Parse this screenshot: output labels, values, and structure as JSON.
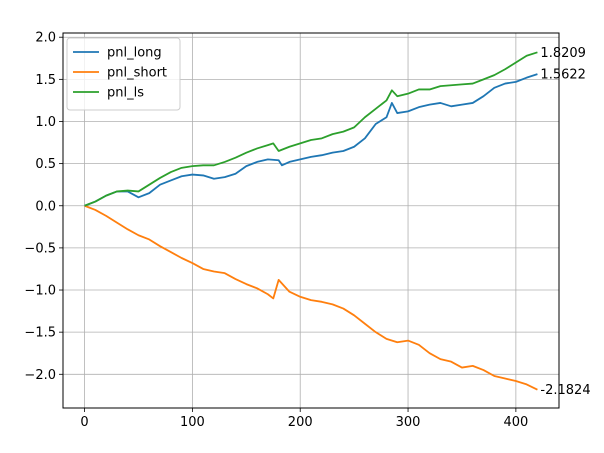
{
  "chart_data": {
    "type": "line",
    "title": "",
    "xlabel": "",
    "ylabel": "",
    "xlim": [
      -20,
      440
    ],
    "ylim": [
      -2.4,
      2.05
    ],
    "x_ticks": [
      0,
      100,
      200,
      300,
      400
    ],
    "y_ticks": [
      -2.0,
      -1.5,
      -1.0,
      -0.5,
      0.0,
      0.5,
      1.0,
      1.5,
      2.0
    ],
    "x_tick_labels": [
      "0",
      "100",
      "200",
      "300",
      "400"
    ],
    "y_tick_labels": [
      "−2.0",
      "−1.5",
      "−1.0",
      "−0.5",
      "0.0",
      "0.5",
      "1.0",
      "1.5",
      "2.0"
    ],
    "grid": true,
    "legend_position": "top-left",
    "series": [
      {
        "name": "pnl_long",
        "color": "#1f77b4",
        "end_label": "1.5622",
        "points": [
          [
            0,
            0.0
          ],
          [
            10,
            0.05
          ],
          [
            20,
            0.12
          ],
          [
            30,
            0.17
          ],
          [
            40,
            0.17
          ],
          [
            50,
            0.1
          ],
          [
            60,
            0.15
          ],
          [
            70,
            0.25
          ],
          [
            80,
            0.3
          ],
          [
            90,
            0.35
          ],
          [
            100,
            0.37
          ],
          [
            110,
            0.36
          ],
          [
            120,
            0.32
          ],
          [
            130,
            0.34
          ],
          [
            140,
            0.38
          ],
          [
            150,
            0.47
          ],
          [
            160,
            0.52
          ],
          [
            170,
            0.55
          ],
          [
            180,
            0.54
          ],
          [
            183,
            0.48
          ],
          [
            190,
            0.52
          ],
          [
            200,
            0.55
          ],
          [
            210,
            0.58
          ],
          [
            220,
            0.6
          ],
          [
            230,
            0.63
          ],
          [
            240,
            0.65
          ],
          [
            250,
            0.7
          ],
          [
            260,
            0.8
          ],
          [
            270,
            0.97
          ],
          [
            280,
            1.05
          ],
          [
            285,
            1.22
          ],
          [
            290,
            1.1
          ],
          [
            300,
            1.12
          ],
          [
            310,
            1.17
          ],
          [
            320,
            1.2
          ],
          [
            330,
            1.22
          ],
          [
            340,
            1.18
          ],
          [
            350,
            1.2
          ],
          [
            360,
            1.22
          ],
          [
            370,
            1.3
          ],
          [
            380,
            1.4
          ],
          [
            390,
            1.45
          ],
          [
            400,
            1.47
          ],
          [
            410,
            1.52
          ],
          [
            420,
            1.5622
          ]
        ]
      },
      {
        "name": "pnl_short",
        "color": "#ff7f0e",
        "end_label": "-2.1824",
        "points": [
          [
            0,
            0.0
          ],
          [
            10,
            -0.05
          ],
          [
            20,
            -0.12
          ],
          [
            30,
            -0.2
          ],
          [
            40,
            -0.28
          ],
          [
            50,
            -0.35
          ],
          [
            60,
            -0.4
          ],
          [
            70,
            -0.48
          ],
          [
            80,
            -0.55
          ],
          [
            90,
            -0.62
          ],
          [
            100,
            -0.68
          ],
          [
            110,
            -0.75
          ],
          [
            120,
            -0.78
          ],
          [
            130,
            -0.8
          ],
          [
            140,
            -0.87
          ],
          [
            150,
            -0.93
          ],
          [
            160,
            -0.98
          ],
          [
            170,
            -1.05
          ],
          [
            175,
            -1.1
          ],
          [
            180,
            -0.88
          ],
          [
            190,
            -1.02
          ],
          [
            200,
            -1.08
          ],
          [
            210,
            -1.12
          ],
          [
            220,
            -1.14
          ],
          [
            230,
            -1.17
          ],
          [
            240,
            -1.22
          ],
          [
            250,
            -1.3
          ],
          [
            260,
            -1.4
          ],
          [
            270,
            -1.5
          ],
          [
            280,
            -1.58
          ],
          [
            290,
            -1.62
          ],
          [
            300,
            -1.6
          ],
          [
            310,
            -1.65
          ],
          [
            320,
            -1.75
          ],
          [
            330,
            -1.82
          ],
          [
            340,
            -1.85
          ],
          [
            350,
            -1.92
          ],
          [
            360,
            -1.9
          ],
          [
            370,
            -1.95
          ],
          [
            380,
            -2.02
          ],
          [
            390,
            -2.05
          ],
          [
            400,
            -2.08
          ],
          [
            410,
            -2.12
          ],
          [
            420,
            -2.1824
          ]
        ]
      },
      {
        "name": "pnl_ls",
        "color": "#2ca02c",
        "end_label": "1.8209",
        "points": [
          [
            0,
            0.0
          ],
          [
            10,
            0.05
          ],
          [
            20,
            0.12
          ],
          [
            30,
            0.17
          ],
          [
            40,
            0.18
          ],
          [
            50,
            0.17
          ],
          [
            60,
            0.25
          ],
          [
            70,
            0.33
          ],
          [
            80,
            0.4
          ],
          [
            90,
            0.45
          ],
          [
            100,
            0.47
          ],
          [
            110,
            0.48
          ],
          [
            120,
            0.48
          ],
          [
            130,
            0.52
          ],
          [
            140,
            0.57
          ],
          [
            150,
            0.63
          ],
          [
            160,
            0.68
          ],
          [
            170,
            0.72
          ],
          [
            175,
            0.74
          ],
          [
            180,
            0.65
          ],
          [
            190,
            0.7
          ],
          [
            200,
            0.74
          ],
          [
            210,
            0.78
          ],
          [
            220,
            0.8
          ],
          [
            230,
            0.85
          ],
          [
            240,
            0.88
          ],
          [
            250,
            0.93
          ],
          [
            260,
            1.05
          ],
          [
            270,
            1.15
          ],
          [
            280,
            1.25
          ],
          [
            285,
            1.37
          ],
          [
            290,
            1.3
          ],
          [
            300,
            1.33
          ],
          [
            310,
            1.38
          ],
          [
            320,
            1.38
          ],
          [
            330,
            1.42
          ],
          [
            340,
            1.43
          ],
          [
            350,
            1.44
          ],
          [
            360,
            1.45
          ],
          [
            370,
            1.5
          ],
          [
            380,
            1.55
          ],
          [
            390,
            1.62
          ],
          [
            400,
            1.7
          ],
          [
            410,
            1.78
          ],
          [
            420,
            1.8209
          ]
        ]
      }
    ]
  }
}
